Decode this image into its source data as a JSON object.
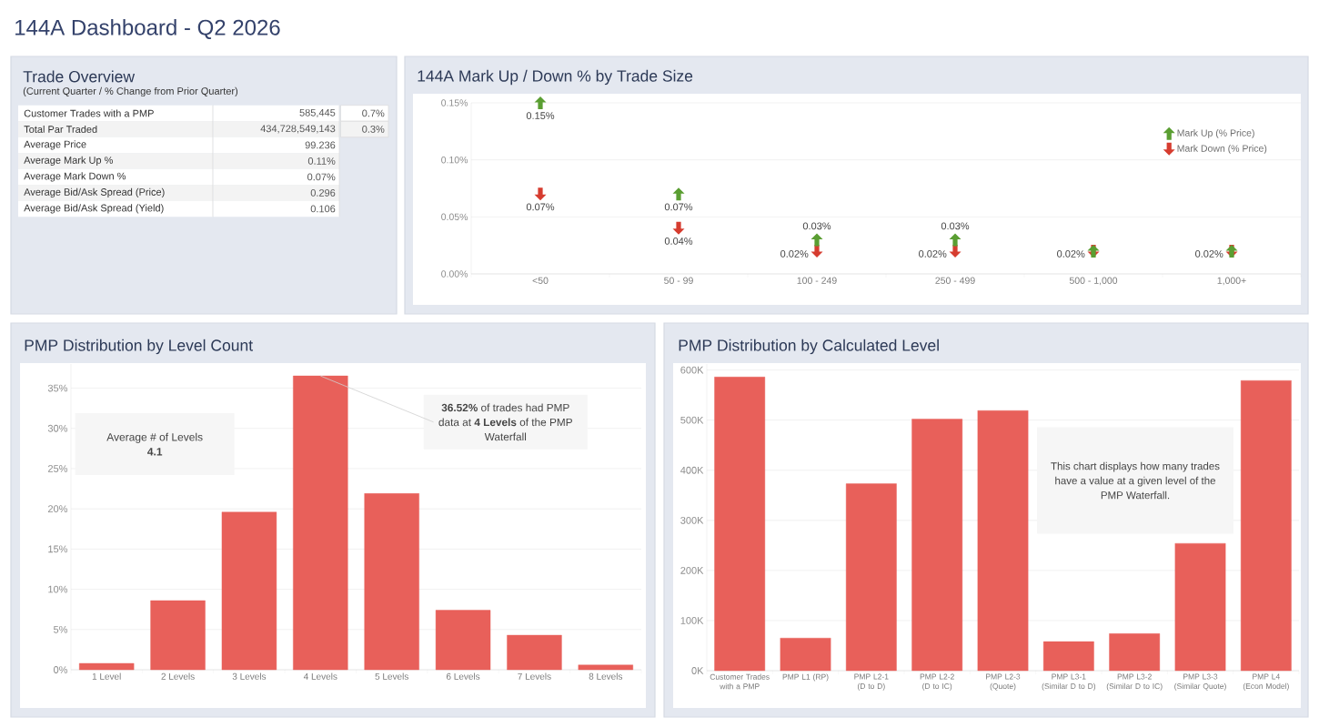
{
  "chart_data": [
    {
      "type": "other",
      "title": "144A Dashboard - Q2 2026"
    },
    {
      "type": "other",
      "title": "Trade Overview",
      "subtitle": "(Current Quarter / % Change from Prior Quarter)",
      "categories": [
        "Customer Trades with a PMP",
        "Total Par Traded",
        "Average Price",
        "Average Mark Up %",
        "Average Mark Down %",
        "Average Bid/Ask Spread (Price)",
        "Average Bid/Ask Spread (Yield)"
      ],
      "series": [
        {
          "colors": [
            "#ffffff",
            "#f3f3f3",
            "#ffffff",
            "#f3f3f3",
            "#ffffff",
            "#f3f3f3",
            "#ffffff"
          ],
          "values": [
            585445,
            434728549143,
            99.236,
            0.11,
            0.07,
            0.296,
            0.106
          ],
          "value_labels": [
            "585,445",
            "434,728,549,143",
            "99.236",
            "0.11%",
            "0.07%",
            "0.296",
            "0.106"
          ]
        },
        {
          "colors": [
            "#ffffff",
            "#f3f3f3",
            null,
            null,
            null,
            null,
            null
          ],
          "values": [
            0.7,
            0.3,
            null,
            null,
            null,
            null,
            null
          ],
          "value_labels": [
            "0.7%",
            "0.3%",
            null,
            null,
            null,
            null,
            null
          ]
        }
      ]
    },
    {
      "type": "scatter",
      "title": "144A Mark Up / Down % by Trade Size",
      "categories": [
        "<50",
        "50 - 99",
        "100 - 249",
        "250 - 499",
        "500 - 1,000",
        "1,000+"
      ],
      "series": [
        {
          "name": "Mark Up (% Price)",
          "color": "#5a9e32",
          "values": [
            0.15,
            0.07,
            0.03,
            0.03,
            0.02,
            0.02
          ],
          "value_labels": [
            "0.15%",
            "0.07%",
            "0.03%",
            "0.03%",
            null,
            null
          ]
        },
        {
          "name": "Mark Down (% Price)",
          "color": "#d63c2f",
          "values": [
            0.07,
            0.04,
            0.02,
            0.02,
            0.02,
            0.02
          ],
          "value_labels": [
            "0.07%",
            "0.04%",
            "0.02%",
            "0.02%",
            "0.02%",
            "0.02%"
          ]
        }
      ],
      "ylim": [
        0,
        0.15
      ],
      "yticks": [
        {
          "value": 0,
          "label": "0.00%"
        },
        {
          "value": 0.05,
          "label": "0.05%"
        },
        {
          "value": 0.1,
          "label": "0.10%"
        },
        {
          "value": 0.15,
          "label": "0.15%"
        }
      ],
      "grid": "y",
      "legend": "top right"
    },
    {
      "type": "bar",
      "title": "PMP Distribution by Level Count",
      "categories": [
        "1 Level",
        "2 Levels",
        "3 Levels",
        "4 Levels",
        "5 Levels",
        "6 Levels",
        "7 Levels",
        "8 Levels"
      ],
      "values": [
        0.8,
        8.6,
        19.6,
        36.52,
        21.9,
        7.4,
        4.3,
        0.6
      ],
      "color": "#e8605a",
      "ylim": [
        0,
        38
      ],
      "yticks": [
        {
          "value": 0,
          "label": "0%"
        },
        {
          "value": 5,
          "label": "5%"
        },
        {
          "value": 10,
          "label": "10%"
        },
        {
          "value": 15,
          "label": "15%"
        },
        {
          "value": 20,
          "label": "20%"
        },
        {
          "value": 25,
          "label": "25%"
        },
        {
          "value": 30,
          "label": "30%"
        },
        {
          "value": 35,
          "label": "35%"
        }
      ],
      "grid": "y",
      "annotations": [
        "Average # of Levels **4.1**",
        {
          "text": "**36.52%** of trades had PMP data at **4 Levels** of the PMP Waterfall",
          "x": "4 Levels",
          "y": 36.52
        }
      ]
    },
    {
      "type": "bar",
      "title": "PMP Distribution by Calculated Level",
      "categories": [
        "Customer Trades with a PMP",
        "PMP L1 (RP)",
        "PMP L2-1 (D to D)",
        "PMP L2-2 (D to IC)",
        "PMP L2-3 (Quote)",
        "PMP L3-1 (Similar D to D)",
        "PMP L3-2 (Similar D to IC)",
        "PMP L3-3 (Similar Quote)",
        "PMP L4 (Econ Model)"
      ],
      "values": [
        586000,
        65000,
        373000,
        502000,
        519000,
        58000,
        74000,
        254000,
        579000
      ],
      "color": "#e8605a",
      "ylim": [
        0,
        612000
      ],
      "yticks": [
        {
          "value": 0,
          "label": "0K"
        },
        {
          "value": 100000,
          "label": "100K"
        },
        {
          "value": 200000,
          "label": "200K"
        },
        {
          "value": 300000,
          "label": "300K"
        },
        {
          "value": 400000,
          "label": "400K"
        },
        {
          "value": 500000,
          "label": "500K"
        },
        {
          "value": 600000,
          "label": "600K"
        }
      ],
      "grid": "y",
      "annotations": [
        "This chart displays how many trades have a value at a given level of the PMP Waterfall."
      ]
    }
  ]
}
